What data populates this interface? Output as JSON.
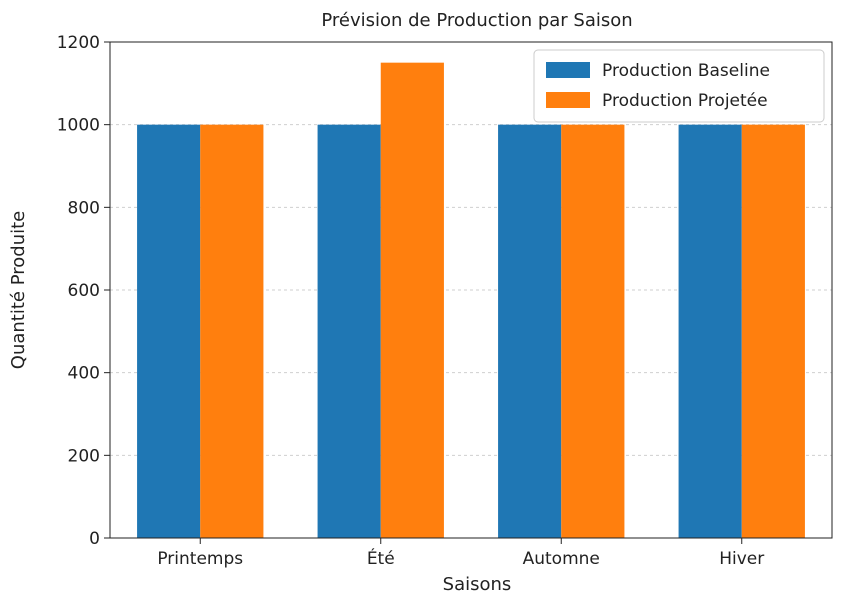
{
  "chart_data": {
    "type": "bar",
    "title": "Prévision de Production par Saison",
    "xlabel": "Saisons",
    "ylabel": "Quantité Produite",
    "categories": [
      "Printemps",
      "Été",
      "Automne",
      "Hiver"
    ],
    "series": [
      {
        "name": "Production Baseline",
        "values": [
          1000,
          1000,
          1000,
          1000
        ],
        "color": "#1f77b4"
      },
      {
        "name": "Production Projetée",
        "values": [
          1000,
          1150,
          1000,
          1000
        ],
        "color": "#ff7f0e"
      }
    ],
    "ylim": [
      0,
      1200
    ],
    "yticks": [
      0,
      200,
      400,
      600,
      800,
      1000,
      1200
    ],
    "grid": true,
    "legend_position": "top-right"
  }
}
